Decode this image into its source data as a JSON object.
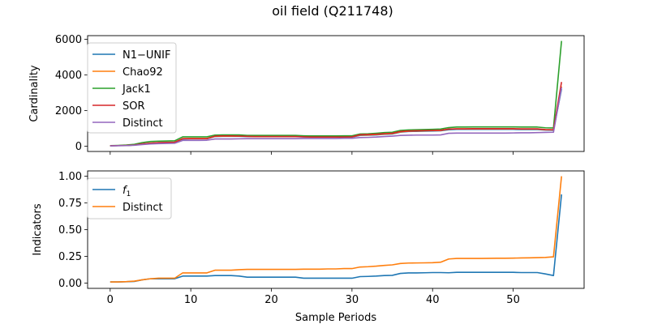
{
  "title": "oil field (Q211748)",
  "chart_data": [
    {
      "type": "line",
      "ylabel": "Cardinality",
      "xlabel": "",
      "xlim": [
        -2.8,
        58.8
      ],
      "ylim": [
        -300,
        6200
      ],
      "xticks": [
        0,
        10,
        20,
        30,
        40,
        50
      ],
      "yticks": [
        0,
        2000,
        4000,
        6000
      ],
      "ytick_labels": [
        "0",
        "2000",
        "4000",
        "6000"
      ],
      "grid": false,
      "legend": "top-left",
      "x": [
        0,
        1,
        2,
        3,
        4,
        5,
        6,
        7,
        8,
        9,
        10,
        11,
        12,
        13,
        14,
        15,
        16,
        17,
        18,
        19,
        20,
        21,
        22,
        23,
        24,
        25,
        26,
        27,
        28,
        29,
        30,
        31,
        32,
        33,
        34,
        35,
        36,
        37,
        38,
        39,
        40,
        41,
        42,
        43,
        44,
        45,
        46,
        47,
        48,
        49,
        50,
        51,
        52,
        53,
        54,
        55,
        56
      ],
      "series": [
        {
          "name": "N1−UNIF",
          "color": "#1f77b4",
          "values": [
            20,
            30,
            40,
            60,
            120,
            160,
            190,
            200,
            210,
            400,
            410,
            410,
            410,
            540,
            550,
            550,
            550,
            540,
            530,
            530,
            530,
            530,
            530,
            530,
            520,
            510,
            510,
            510,
            510,
            510,
            510,
            600,
            610,
            630,
            660,
            680,
            780,
            820,
            830,
            840,
            850,
            860,
            920,
            940,
            940,
            940,
            940,
            940,
            940,
            940,
            940,
            930,
            930,
            930,
            900,
            890,
            3200
          ]
        },
        {
          "name": "Chao92",
          "color": "#ff7f0e",
          "values": [
            20,
            30,
            40,
            60,
            120,
            160,
            190,
            200,
            210,
            420,
            430,
            430,
            430,
            550,
            560,
            560,
            560,
            550,
            540,
            540,
            540,
            540,
            540,
            540,
            530,
            520,
            520,
            520,
            520,
            520,
            520,
            620,
            630,
            650,
            680,
            700,
            800,
            840,
            850,
            860,
            870,
            880,
            950,
            970,
            970,
            970,
            970,
            970,
            970,
            970,
            970,
            960,
            960,
            960,
            920,
            910,
            3350
          ]
        },
        {
          "name": "Jack1",
          "color": "#2ca02c",
          "values": [
            30,
            40,
            60,
            100,
            200,
            260,
            280,
            290,
            300,
            520,
            520,
            520,
            520,
            620,
            630,
            630,
            630,
            600,
            600,
            600,
            600,
            600,
            600,
            600,
            580,
            570,
            570,
            570,
            570,
            580,
            580,
            680,
            690,
            720,
            760,
            780,
            880,
            910,
            920,
            930,
            940,
            960,
            1040,
            1070,
            1070,
            1080,
            1080,
            1080,
            1080,
            1080,
            1080,
            1070,
            1070,
            1070,
            1030,
            1020,
            5900
          ]
        },
        {
          "name": "SOR",
          "color": "#d62728",
          "values": [
            20,
            30,
            40,
            60,
            130,
            170,
            200,
            210,
            220,
            420,
            420,
            420,
            420,
            560,
            570,
            570,
            560,
            550,
            540,
            540,
            540,
            540,
            540,
            540,
            520,
            510,
            510,
            510,
            510,
            510,
            520,
            640,
            650,
            670,
            700,
            720,
            820,
            850,
            860,
            870,
            880,
            890,
            960,
            970,
            970,
            980,
            980,
            980,
            980,
            980,
            980,
            970,
            970,
            970,
            930,
            920,
            3600
          ]
        },
        {
          "name": "Distinct",
          "color": "#9467bd",
          "values": [
            10,
            20,
            30,
            50,
            90,
            120,
            140,
            150,
            160,
            320,
            320,
            320,
            330,
            400,
            400,
            400,
            410,
            420,
            420,
            420,
            420,
            420,
            420,
            420,
            430,
            430,
            430,
            430,
            430,
            440,
            440,
            480,
            490,
            510,
            540,
            560,
            600,
            610,
            620,
            620,
            620,
            630,
            720,
            730,
            730,
            730,
            730,
            730,
            730,
            730,
            740,
            750,
            750,
            760,
            770,
            780,
            3300
          ]
        }
      ]
    },
    {
      "type": "line",
      "ylabel": "Indicators",
      "xlabel": "Sample Periods",
      "xlim": [
        -2.8,
        58.8
      ],
      "ylim": [
        -0.05,
        1.05
      ],
      "xticks": [
        0,
        10,
        20,
        30,
        40,
        50
      ],
      "xtick_labels": [
        "0",
        "10",
        "20",
        "30",
        "40",
        "50"
      ],
      "yticks": [
        0,
        0.25,
        0.5,
        0.75,
        1.0
      ],
      "ytick_labels": [
        "0.00",
        "0.25",
        "0.50",
        "0.75",
        "1.00"
      ],
      "grid": false,
      "legend": "top-left",
      "x": [
        0,
        1,
        2,
        3,
        4,
        5,
        6,
        7,
        8,
        9,
        10,
        11,
        12,
        13,
        14,
        15,
        16,
        17,
        18,
        19,
        20,
        21,
        22,
        23,
        24,
        25,
        26,
        27,
        28,
        29,
        30,
        31,
        32,
        33,
        34,
        35,
        36,
        37,
        38,
        39,
        40,
        41,
        42,
        43,
        44,
        45,
        46,
        47,
        48,
        49,
        50,
        51,
        52,
        53,
        54,
        55,
        56
      ],
      "series": [
        {
          "name": "f1",
          "name_italic": "f",
          "name_sub": "1",
          "color": "#1f77b4",
          "values": [
            0.01,
            0.01,
            0.012,
            0.015,
            0.03,
            0.04,
            0.04,
            0.04,
            0.04,
            0.065,
            0.065,
            0.065,
            0.065,
            0.07,
            0.07,
            0.07,
            0.065,
            0.055,
            0.055,
            0.055,
            0.055,
            0.055,
            0.055,
            0.055,
            0.045,
            0.045,
            0.045,
            0.045,
            0.045,
            0.045,
            0.045,
            0.06,
            0.062,
            0.065,
            0.07,
            0.072,
            0.09,
            0.095,
            0.095,
            0.096,
            0.098,
            0.098,
            0.096,
            0.1,
            0.1,
            0.1,
            0.1,
            0.1,
            0.1,
            0.1,
            0.1,
            0.098,
            0.098,
            0.098,
            0.085,
            0.07,
            0.83
          ]
        },
        {
          "name": "Distinct",
          "color": "#ff7f0e",
          "values": [
            0.01,
            0.01,
            0.013,
            0.018,
            0.03,
            0.04,
            0.045,
            0.045,
            0.045,
            0.095,
            0.095,
            0.095,
            0.095,
            0.12,
            0.12,
            0.12,
            0.125,
            0.128,
            0.128,
            0.128,
            0.128,
            0.128,
            0.128,
            0.128,
            0.13,
            0.13,
            0.13,
            0.132,
            0.132,
            0.135,
            0.135,
            0.15,
            0.153,
            0.158,
            0.165,
            0.17,
            0.183,
            0.187,
            0.188,
            0.189,
            0.19,
            0.195,
            0.225,
            0.23,
            0.23,
            0.23,
            0.23,
            0.231,
            0.232,
            0.232,
            0.233,
            0.235,
            0.236,
            0.238,
            0.24,
            0.245,
            1.0
          ]
        }
      ]
    }
  ]
}
